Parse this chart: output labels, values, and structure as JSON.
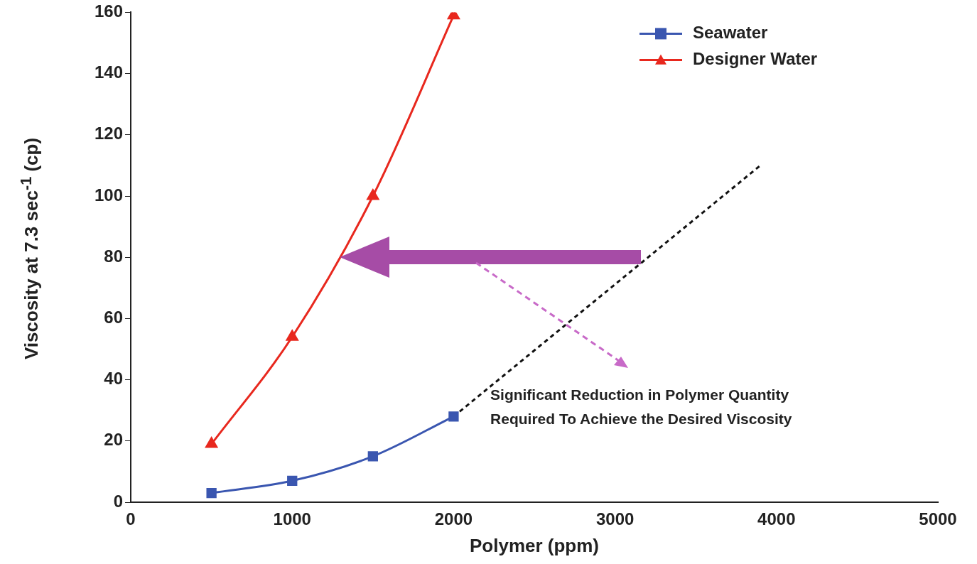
{
  "chart_data": {
    "type": "line",
    "xlabel": "Polymer (ppm)",
    "ylabel": "Viscosity at 7.3 sec$^{-1}$ (cp)",
    "x": [
      500,
      1000,
      1500,
      2000
    ],
    "series": [
      {
        "name": "Seawater",
        "color": "#3a56b0",
        "marker": "square",
        "values": [
          3,
          7,
          15,
          28
        ]
      },
      {
        "name": "Designer Water",
        "color": "#e8281e",
        "marker": "triangle",
        "values": [
          19,
          54,
          100,
          159
        ]
      },
      {
        "color": "#111111",
        "marker": "none",
        "line_style": "dashed",
        "x": [
          2000,
          3900
        ],
        "values": [
          28,
          110
        ]
      }
    ],
    "xlim": [
      0,
      5000
    ],
    "xticks": [
      0,
      1000,
      2000,
      3000,
      4000,
      5000
    ],
    "ylim": [
      0,
      160
    ],
    "yticks": [
      0,
      20,
      40,
      60,
      80,
      100,
      120,
      140,
      160
    ],
    "grid": false,
    "legend": "top right",
    "annotations": [
      "Significant Reduction in Polymer Quantity Required To Achieve the Desired Viscosity"
    ]
  }
}
